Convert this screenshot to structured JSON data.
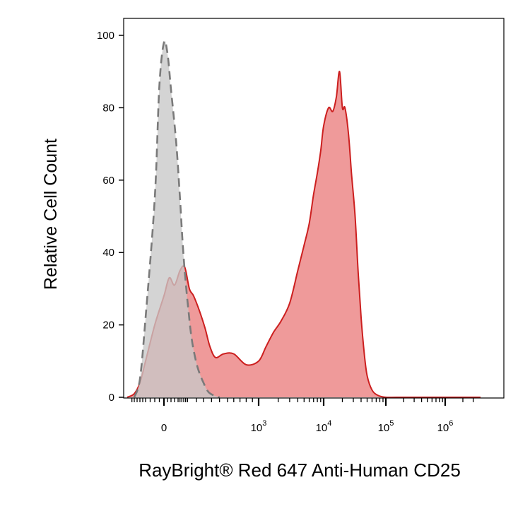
{
  "chart_data": {
    "type": "area",
    "title": "",
    "xlabel": "RayBright® Red 647 Anti-Human CD25",
    "ylabel": "Relative Cell Count",
    "x_scale": "biexponential",
    "ylim": [
      0,
      100
    ],
    "y_ticks": [
      "0",
      "20",
      "40",
      "60",
      "80",
      "100"
    ],
    "x_ticks": [
      {
        "base": "0",
        "exp": ""
      },
      {
        "base": "10",
        "exp": "3"
      },
      {
        "base": "10",
        "exp": "4"
      },
      {
        "base": "10",
        "exp": "5"
      },
      {
        "base": "10",
        "exp": "6"
      }
    ],
    "grid": false,
    "series": [
      {
        "fill": "#c8c8c8",
        "stroke": "#7a7a7a",
        "dashed": true,
        "x": [
          -80,
          -60,
          -40,
          -20,
          -10,
          0,
          10,
          20,
          35,
          50,
          65,
          80,
          95,
          110,
          130,
          160,
          200,
          260,
          330,
          400
        ],
        "values": [
          0,
          5,
          22,
          55,
          86,
          98,
          95,
          85,
          70,
          55,
          42,
          32,
          24,
          18,
          13,
          8,
          4,
          1.5,
          0.5,
          0
        ]
      },
      {
        "fill": "#ef9a9a",
        "stroke": "#cc1f1f",
        "dashed": false,
        "x": [
          -110,
          -80,
          -60,
          -40,
          -20,
          0,
          15,
          30,
          50,
          75,
          100,
          130,
          170,
          220,
          280,
          350,
          450,
          600,
          800,
          1000,
          1300,
          1700,
          2200,
          3000,
          4000,
          5000,
          6000,
          7000,
          8000,
          9000,
          10000,
          12000,
          14000,
          16000,
          18000,
          20000,
          22000,
          25000,
          28000,
          32000,
          36000,
          40000,
          45000,
          50000,
          60000,
          75000,
          100000,
          150000,
          300000,
          1000000,
          4000000
        ],
        "values": [
          0,
          1,
          4,
          10,
          20,
          28,
          33,
          31,
          35,
          36,
          30,
          28,
          24,
          19,
          14,
          11,
          12,
          12,
          9,
          10,
          14,
          18,
          21,
          26,
          35,
          42,
          48,
          56,
          62,
          68,
          75,
          80,
          79,
          83,
          90,
          80,
          80,
          73,
          62,
          50,
          34,
          22,
          12,
          6,
          2,
          0.5,
          0,
          0,
          0,
          0,
          0
        ]
      }
    ]
  }
}
